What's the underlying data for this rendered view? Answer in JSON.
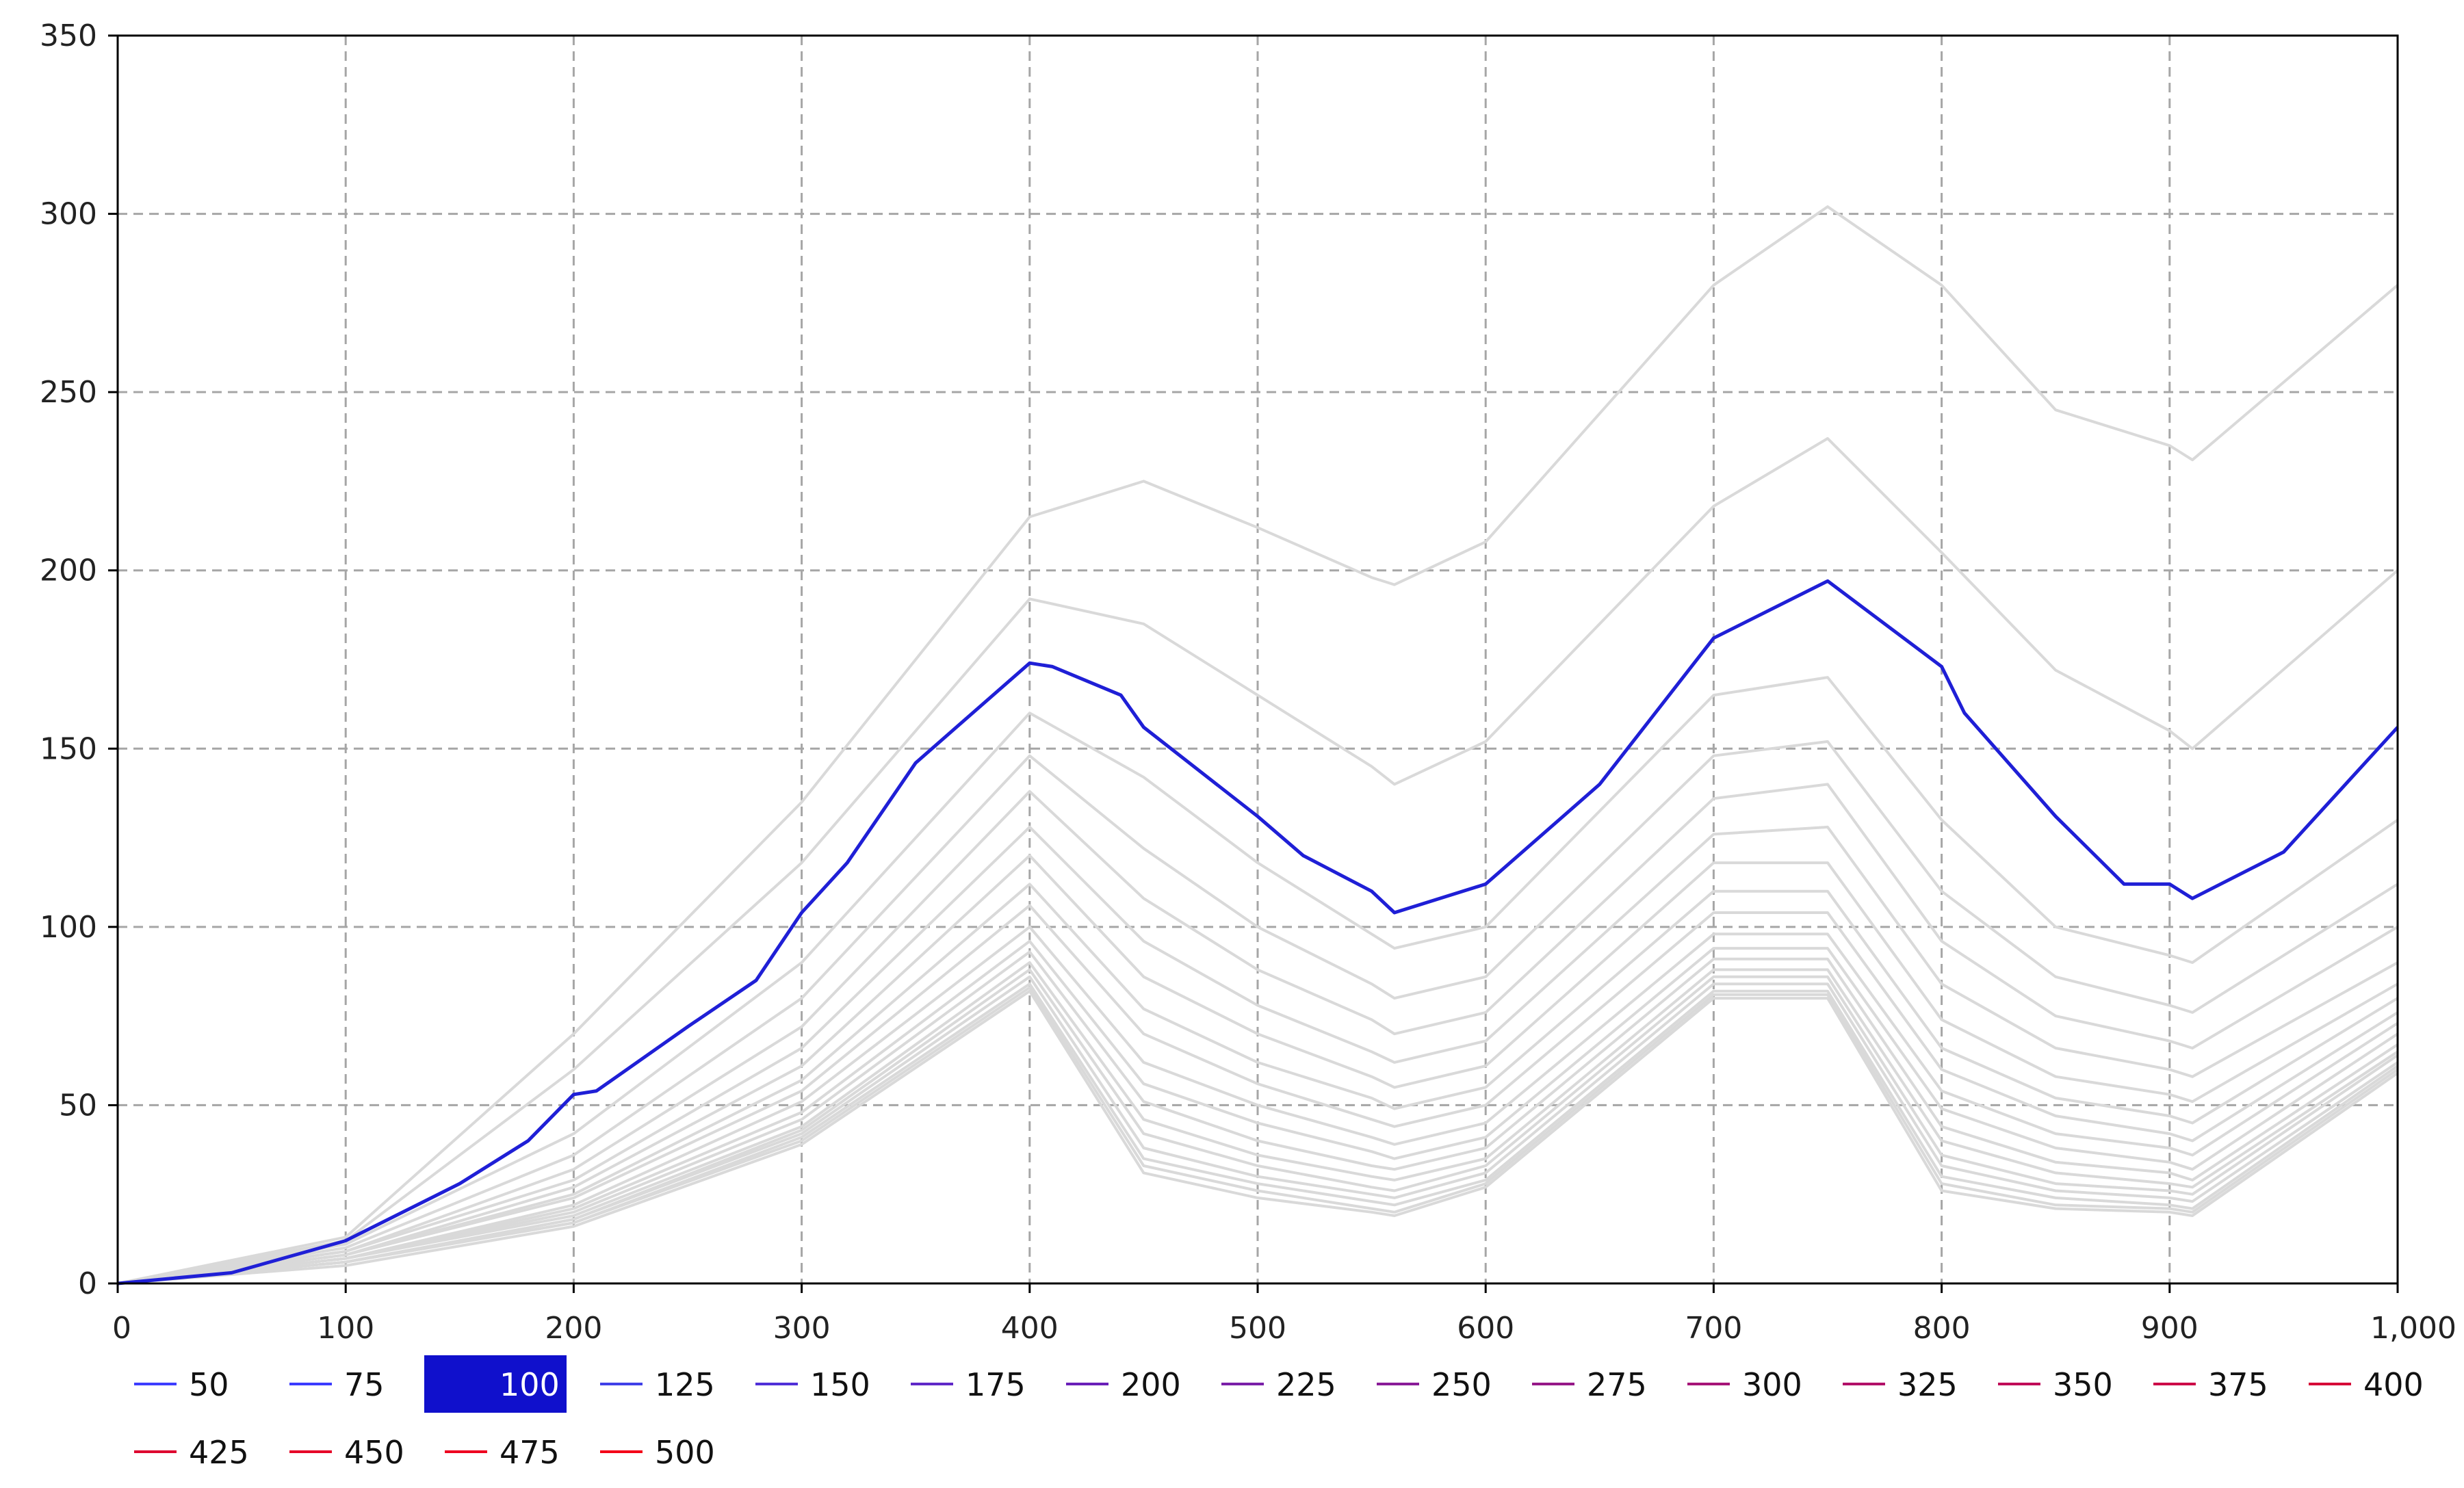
{
  "chart_data": {
    "type": "line",
    "title": "",
    "xlabel": "",
    "ylabel": "",
    "xlim": [
      0,
      1000
    ],
    "ylim": [
      0,
      350
    ],
    "x_ticks": [
      0,
      100,
      200,
      300,
      400,
      500,
      600,
      700,
      800,
      900,
      1000
    ],
    "x_tick_labels": [
      "0",
      "100",
      "200",
      "300",
      "400",
      "500",
      "600",
      "700",
      "800",
      "900",
      "1,000"
    ],
    "y_ticks": [
      0,
      50,
      100,
      150,
      200,
      250,
      300,
      350
    ],
    "y_tick_labels": [
      "0",
      "50",
      "100",
      "150",
      "200",
      "250",
      "300",
      "350"
    ],
    "grid": true,
    "legend_position": "bottom",
    "selected_series": "100",
    "colors": {
      "highlight": "#1f1fd6",
      "background_series": "#d9d9d9",
      "grid": "#a6a6a6",
      "axis": "#000000",
      "legend_selected_bg": "#1010cc"
    },
    "series": [
      {
        "name": "50",
        "color": "#3d3dff",
        "x": [
          0,
          100,
          200,
          300,
          400,
          450,
          500,
          550,
          560,
          600,
          700,
          750,
          800,
          850,
          900,
          910,
          1000
        ],
        "y": [
          0,
          13,
          70,
          135,
          215,
          225,
          212,
          198,
          196,
          208,
          280,
          302,
          280,
          245,
          235,
          231,
          280
        ]
      },
      {
        "name": "75",
        "color": "#3b3bff",
        "x": [
          0,
          100,
          200,
          300,
          400,
          450,
          500,
          550,
          560,
          600,
          700,
          750,
          800,
          850,
          900,
          910,
          1000
        ],
        "y": [
          0,
          12,
          60,
          118,
          192,
          185,
          165,
          145,
          140,
          152,
          218,
          237,
          205,
          172,
          155,
          150,
          200
        ]
      },
      {
        "name": "100",
        "color": "#1f1fd6",
        "x": [
          0,
          50,
          100,
          150,
          180,
          200,
          210,
          250,
          280,
          300,
          320,
          350,
          400,
          410,
          440,
          450,
          500,
          520,
          550,
          560,
          600,
          650,
          700,
          750,
          800,
          810,
          850,
          880,
          900,
          910,
          950,
          1000
        ],
        "y": [
          0,
          3,
          12,
          28,
          40,
          53,
          54,
          72,
          85,
          104,
          118,
          146,
          174,
          173,
          165,
          156,
          131,
          120,
          110,
          104,
          112,
          140,
          181,
          197,
          173,
          160,
          131,
          112,
          112,
          108,
          121,
          156
        ]
      },
      {
        "name": "125",
        "color": "#4040e8",
        "x": [
          0,
          100,
          200,
          300,
          400,
          450,
          500,
          550,
          560,
          600,
          700,
          750,
          800,
          850,
          900,
          910,
          1000
        ],
        "y": [
          0,
          11,
          42,
          90,
          160,
          142,
          118,
          98,
          94,
          100,
          165,
          170,
          130,
          100,
          92,
          90,
          130
        ]
      },
      {
        "name": "150",
        "color": "#5030d8",
        "x": [
          0,
          100,
          200,
          300,
          400,
          450,
          500,
          550,
          560,
          600,
          700,
          750,
          800,
          850,
          900,
          910,
          1000
        ],
        "y": [
          0,
          10,
          36,
          80,
          148,
          122,
          100,
          84,
          80,
          86,
          148,
          152,
          110,
          86,
          78,
          76,
          112
        ]
      },
      {
        "name": "175",
        "color": "#6028c8",
        "x": [
          0,
          100,
          200,
          300,
          400,
          450,
          500,
          550,
          560,
          600,
          700,
          750,
          800,
          850,
          900,
          910,
          1000
        ],
        "y": [
          0,
          9,
          32,
          72,
          138,
          108,
          88,
          74,
          70,
          76,
          136,
          140,
          96,
          75,
          68,
          66,
          100
        ]
      },
      {
        "name": "200",
        "color": "#6a20b8",
        "x": [
          0,
          100,
          200,
          300,
          400,
          450,
          500,
          550,
          560,
          600,
          700,
          750,
          800,
          850,
          900,
          910,
          1000
        ],
        "y": [
          0,
          9,
          29,
          66,
          128,
          96,
          78,
          65,
          62,
          68,
          126,
          128,
          84,
          66,
          60,
          58,
          90
        ]
      },
      {
        "name": "225",
        "color": "#7a20a8",
        "x": [
          0,
          100,
          200,
          300,
          400,
          450,
          500,
          550,
          560,
          600,
          700,
          750,
          800,
          850,
          900,
          910,
          1000
        ],
        "y": [
          0,
          8,
          27,
          61,
          120,
          86,
          70,
          58,
          55,
          61,
          118,
          118,
          74,
          58,
          53,
          51,
          84
        ]
      },
      {
        "name": "250",
        "color": "#8a1c98",
        "x": [
          0,
          100,
          200,
          300,
          400,
          450,
          500,
          550,
          560,
          600,
          700,
          750,
          800,
          850,
          900,
          910,
          1000
        ],
        "y": [
          0,
          8,
          25,
          57,
          112,
          77,
          62,
          52,
          49,
          55,
          110,
          110,
          66,
          52,
          47,
          45,
          80
        ]
      },
      {
        "name": "275",
        "color": "#961888",
        "x": [
          0,
          100,
          200,
          300,
          400,
          450,
          500,
          550,
          560,
          600,
          700,
          750,
          800,
          850,
          900,
          910,
          1000
        ],
        "y": [
          0,
          8,
          24,
          54,
          106,
          70,
          56,
          46,
          44,
          50,
          104,
          104,
          60,
          47,
          42,
          40,
          76
        ]
      },
      {
        "name": "300",
        "color": "#a61478",
        "x": [
          0,
          100,
          200,
          300,
          400,
          450,
          500,
          550,
          560,
          600,
          700,
          750,
          800,
          850,
          900,
          910,
          1000
        ],
        "y": [
          0,
          7,
          22,
          51,
          100,
          62,
          50,
          41,
          39,
          45,
          98,
          98,
          54,
          42,
          38,
          36,
          73
        ]
      },
      {
        "name": "325",
        "color": "#b21068",
        "x": [
          0,
          100,
          200,
          300,
          400,
          450,
          500,
          550,
          560,
          600,
          700,
          750,
          800,
          850,
          900,
          910,
          1000
        ],
        "y": [
          0,
          7,
          21,
          48,
          96,
          56,
          45,
          37,
          35,
          41,
          94,
          94,
          49,
          38,
          34,
          32,
          70
        ]
      },
      {
        "name": "350",
        "color": "#c00c58",
        "x": [
          0,
          100,
          200,
          300,
          400,
          450,
          500,
          550,
          560,
          600,
          700,
          750,
          800,
          850,
          900,
          910,
          1000
        ],
        "y": [
          0,
          7,
          20,
          46,
          93,
          51,
          40,
          33,
          32,
          38,
          91,
          91,
          44,
          34,
          31,
          29,
          67
        ]
      },
      {
        "name": "375",
        "color": "#cc0a48",
        "x": [
          0,
          100,
          200,
          300,
          400,
          450,
          500,
          550,
          560,
          600,
          700,
          750,
          800,
          850,
          900,
          910,
          1000
        ],
        "y": [
          0,
          7,
          19,
          44,
          90,
          46,
          36,
          30,
          29,
          35,
          88,
          88,
          40,
          31,
          28,
          27,
          65
        ]
      },
      {
        "name": "400",
        "color": "#d60838",
        "x": [
          0,
          100,
          200,
          300,
          400,
          450,
          500,
          550,
          560,
          600,
          700,
          750,
          800,
          850,
          900,
          910,
          1000
        ],
        "y": [
          0,
          6,
          18,
          43,
          88,
          42,
          33,
          27,
          26,
          33,
          86,
          86,
          36,
          28,
          26,
          25,
          64
        ]
      },
      {
        "name": "425",
        "color": "#de0630",
        "x": [
          0,
          100,
          200,
          300,
          400,
          450,
          500,
          550,
          560,
          600,
          700,
          750,
          800,
          850,
          900,
          910,
          1000
        ],
        "y": [
          0,
          6,
          18,
          42,
          86,
          38,
          30,
          25,
          24,
          31,
          84,
          84,
          33,
          26,
          24,
          23,
          62
        ]
      },
      {
        "name": "450",
        "color": "#e60428",
        "x": [
          0,
          100,
          200,
          300,
          400,
          450,
          500,
          550,
          560,
          600,
          700,
          750,
          800,
          850,
          900,
          910,
          1000
        ],
        "y": [
          0,
          6,
          17,
          41,
          84,
          35,
          28,
          23,
          22,
          29,
          82,
          82,
          30,
          24,
          22,
          21,
          61
        ]
      },
      {
        "name": "475",
        "color": "#ee0220",
        "x": [
          0,
          100,
          200,
          300,
          400,
          450,
          500,
          550,
          560,
          600,
          700,
          750,
          800,
          850,
          900,
          910,
          1000
        ],
        "y": [
          0,
          6,
          17,
          40,
          83,
          33,
          26,
          21,
          20,
          28,
          81,
          81,
          28,
          22,
          21,
          20,
          60
        ]
      },
      {
        "name": "500",
        "color": "#f40018",
        "x": [
          0,
          100,
          200,
          300,
          400,
          450,
          500,
          550,
          560,
          600,
          700,
          750,
          800,
          850,
          900,
          910,
          1000
        ],
        "y": [
          0,
          5,
          16,
          39,
          82,
          31,
          24,
          20,
          19,
          27,
          80,
          80,
          26,
          21,
          20,
          19,
          59
        ]
      }
    ]
  }
}
